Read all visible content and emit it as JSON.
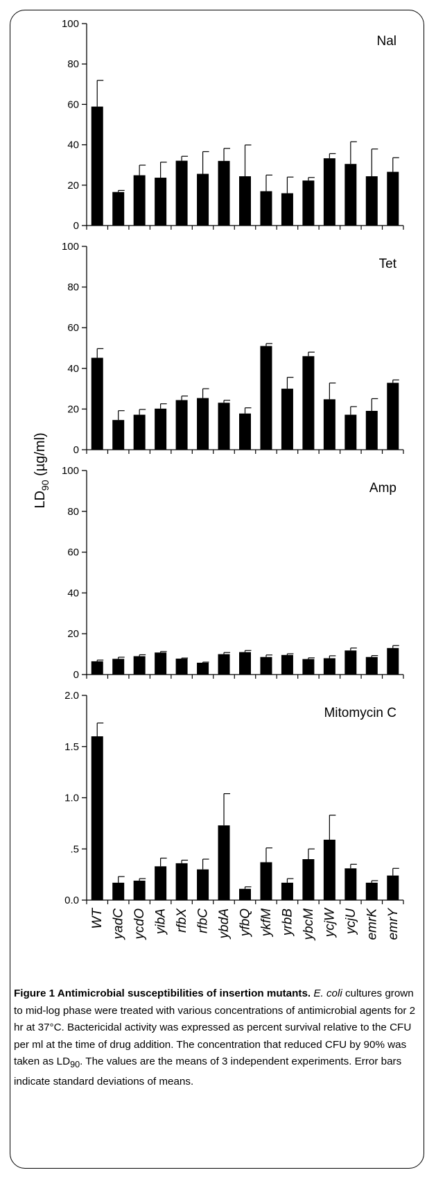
{
  "chart_data": {
    "type": "bar",
    "ylabel": "LD",
    "ylabel_sub": "90",
    "ylabel_unit": " (µg/ml)",
    "categories": [
      "WT",
      "yadC",
      "ycdO",
      "yibA",
      "rfbX",
      "rfbC",
      "ybdA",
      "yfbQ",
      "ykfM",
      "yrbB",
      "ybcM",
      "ycjW",
      "ycjU",
      "emrK",
      "emrY"
    ],
    "panels": [
      {
        "label": "Nal",
        "ylim": [
          0,
          100
        ],
        "ticks": [
          0,
          20,
          40,
          60,
          80,
          100
        ],
        "tick_labels": [
          "0",
          "20",
          "40",
          "60",
          "80",
          "100"
        ],
        "values": [
          58.9,
          16.6,
          24.9,
          23.7,
          32.1,
          25.6,
          32.0,
          24.4,
          17.0,
          16.0,
          22.3,
          33.3,
          30.5,
          24.4,
          26.6
        ],
        "errors": [
          13.0,
          0.8,
          5.0,
          7.7,
          2.2,
          11.0,
          6.2,
          15.5,
          8.0,
          8.0,
          1.5,
          2.3,
          11.0,
          13.5,
          7.0
        ]
      },
      {
        "label": "Tet",
        "ylim": [
          0,
          100
        ],
        "ticks": [
          0,
          20,
          40,
          60,
          80,
          100
        ],
        "tick_labels": [
          "0",
          "20",
          "40",
          "60",
          "80",
          "100"
        ],
        "values": [
          45.2,
          14.6,
          17.2,
          20.2,
          24.4,
          25.4,
          23.1,
          17.8,
          51.0,
          30.0,
          46.0,
          24.8,
          17.2,
          19.1,
          32.9
        ],
        "errors": [
          4.5,
          4.6,
          2.6,
          2.4,
          2.0,
          4.6,
          1.2,
          2.8,
          1.2,
          5.6,
          2.0,
          8.0,
          4.0,
          6.0,
          1.4
        ]
      },
      {
        "label": "Amp",
        "ylim": [
          0,
          100
        ],
        "ticks": [
          0,
          20,
          40,
          60,
          80,
          100
        ],
        "tick_labels": [
          "0",
          "20",
          "40",
          "60",
          "80",
          "100"
        ],
        "values": [
          6.5,
          7.7,
          9.0,
          10.8,
          7.8,
          5.8,
          10.0,
          11.0,
          8.6,
          9.6,
          7.6,
          8.0,
          11.8,
          8.6,
          13.0
        ],
        "errors": [
          0.6,
          0.8,
          0.7,
          0.5,
          0.3,
          0.3,
          0.8,
          0.8,
          1.0,
          0.6,
          0.6,
          1.2,
          1.2,
          0.7,
          1.2
        ]
      },
      {
        "label": "Mitomycin C",
        "ylim": [
          0,
          2.0
        ],
        "ticks": [
          0,
          0.5,
          1.0,
          1.5,
          2.0
        ],
        "tick_labels": [
          "0.0",
          ".5",
          "1.0",
          "1.5",
          "2.0"
        ],
        "values": [
          1.6,
          0.17,
          0.19,
          0.33,
          0.36,
          0.3,
          0.73,
          0.11,
          0.37,
          0.17,
          0.4,
          0.59,
          0.31,
          0.17,
          0.24
        ],
        "errors": [
          0.13,
          0.06,
          0.02,
          0.08,
          0.03,
          0.1,
          0.31,
          0.02,
          0.14,
          0.04,
          0.1,
          0.24,
          0.04,
          0.02,
          0.07
        ]
      }
    ]
  },
  "caption": {
    "title": "Figure 1 Antimicrobial susceptibilities of insertion mutants",
    "title_end": ". ",
    "italic_species": "E. coli",
    "text_1": " cultures grown to mid-log phase were treated with various concentrations of antimicrobial agents for 2 hr at 37°C. Bactericidal activity was expressed as percent survival relative to the CFU per ml at the time of drug addition. The concentration that reduced CFU by 90% was taken as LD",
    "sub": "90",
    "text_2": ". The values are the means of 3 independent experiments. Error bars indicate standard deviations of means."
  }
}
